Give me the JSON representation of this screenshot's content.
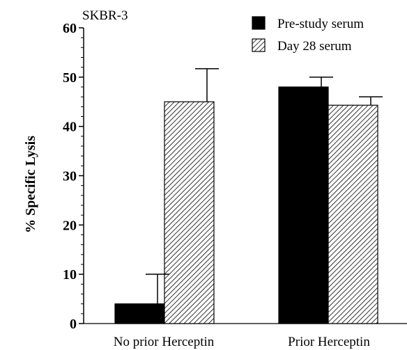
{
  "chart_data": {
    "type": "bar",
    "title": "SKBR-3",
    "ylabel": "% Specific Lysis",
    "xlabel": "",
    "ylim": [
      0,
      60
    ],
    "yticks": [
      0,
      10,
      20,
      30,
      40,
      50,
      60
    ],
    "categories": [
      "No prior Herceptin",
      "Prior Herceptin"
    ],
    "series": [
      {
        "name": "Pre-study serum",
        "values": [
          4,
          48
        ],
        "errors": [
          6,
          2
        ],
        "fill": "solid",
        "color": "#000000"
      },
      {
        "name": "Day 28 serum",
        "values": [
          45,
          44.3
        ],
        "errors": [
          6.7,
          1.7
        ],
        "fill": "hatched",
        "color": "#000000"
      }
    ],
    "legend_position": "top-right",
    "grid": false
  }
}
